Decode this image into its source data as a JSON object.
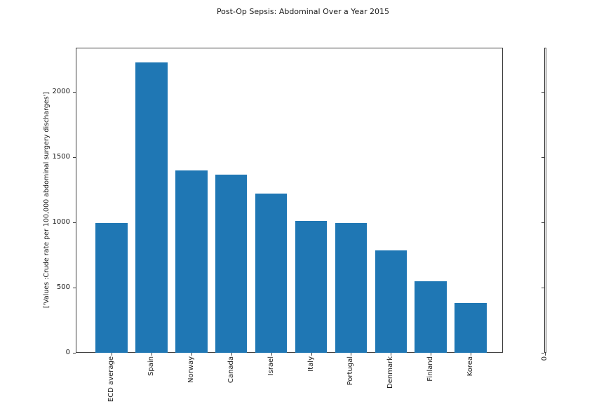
{
  "chart_data": {
    "type": "bar",
    "title": "Post-Op Sepsis: Abdominal Over a Year 2015",
    "xlabel": "",
    "ylabel": "['Values :Crude rate per 100,000 abdominal surgery discharges']",
    "categories": [
      "ECD average",
      "Spain",
      "Norway",
      "Canada",
      "Israel",
      "Italy",
      "Portugal",
      "Denmark",
      "Finland",
      "Korea"
    ],
    "values": [
      995,
      2225,
      1400,
      1365,
      1220,
      1010,
      995,
      785,
      550,
      380
    ],
    "bar_color": "#1f77b4",
    "ylim": [
      0,
      2340
    ],
    "yticks": [
      0,
      500,
      1000,
      1500,
      2000
    ],
    "grid": false,
    "legend": null,
    "x_tick_rotation": 90,
    "secondary_axis": {
      "xtick_label": "0",
      "yticks": [
        0,
        500,
        1000,
        1500,
        2000
      ]
    }
  }
}
